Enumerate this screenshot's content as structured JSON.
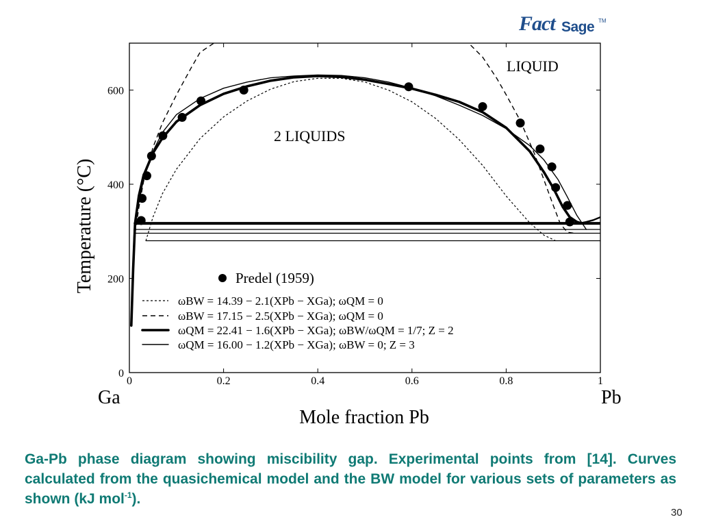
{
  "logo": {
    "mark": "Fact",
    "sage": "Sage",
    "tm": "TM"
  },
  "chart_data": {
    "type": "line",
    "title": "",
    "xlabel": "Mole fraction Pb",
    "ylabel": "Temperature (°C)",
    "xlim": [
      0,
      1
    ],
    "ylim": [
      0,
      700
    ],
    "xticks": [
      0,
      0.2,
      0.4,
      0.6,
      0.8,
      1
    ],
    "xtick_labels": [
      "0",
      "0.2",
      "0.4",
      "0.6",
      "0.8",
      "1"
    ],
    "yticks": [
      0,
      200,
      400,
      600
    ],
    "ytick_labels": [
      "0",
      "200",
      "400",
      "600"
    ],
    "x_end_labels": {
      "left": "Ga",
      "right": "Pb"
    },
    "grid": false,
    "legend_position": "bottom-left",
    "region_labels": [
      "LIQUID",
      "2 LIQUIDS"
    ],
    "experimental": {
      "name": "Predel (1959)",
      "points": [
        [
          0.025,
          323
        ],
        [
          0.027,
          370
        ],
        [
          0.037,
          418
        ],
        [
          0.047,
          460
        ],
        [
          0.071,
          503
        ],
        [
          0.112,
          542
        ],
        [
          0.152,
          577
        ],
        [
          0.243,
          600
        ],
        [
          0.593,
          607
        ],
        [
          0.75,
          565
        ],
        [
          0.83,
          530
        ],
        [
          0.872,
          475
        ],
        [
          0.897,
          437
        ],
        [
          0.905,
          393
        ],
        [
          0.93,
          355
        ],
        [
          0.935,
          320
        ]
      ]
    },
    "monotectic_temperatures": [
      {
        "series": "QM Z=2",
        "T": 317
      },
      {
        "series": "QM Z=3",
        "T": 304
      },
      {
        "series": "BW 17.15",
        "T": 296
      },
      {
        "series": "BW 14.39",
        "T": 280
      }
    ],
    "series": [
      {
        "name": "ωBW = 14.39 − 2.1(XPb − XGa); ωQM = 0",
        "style": "dotted-dash",
        "x": [
          0.035,
          0.05,
          0.07,
          0.1,
          0.15,
          0.2,
          0.25,
          0.3,
          0.35,
          0.4,
          0.45,
          0.5,
          0.55,
          0.6,
          0.65,
          0.7,
          0.75,
          0.8,
          0.85,
          0.88,
          0.905
        ],
        "y": [
          280,
          330,
          380,
          432,
          497,
          543,
          577,
          602,
          618,
          625,
          625,
          617,
          600,
          575,
          540,
          495,
          440,
          375,
          318,
          292,
          280
        ]
      },
      {
        "name": "ωBW = 17.15 − 2.5(XPb − XGa); ωQM = 0",
        "style": "dashed",
        "x": [
          0.012,
          0.02,
          0.03,
          0.05,
          0.07,
          0.1,
          0.13,
          0.15,
          0.18,
          0.72,
          0.75,
          0.78,
          0.8,
          0.83,
          0.86,
          0.88,
          0.9,
          0.915,
          0.93,
          0.945
        ],
        "y": [
          296,
          350,
          405,
          478,
          530,
          590,
          645,
          680,
          700,
          700,
          670,
          625,
          590,
          535,
          465,
          410,
          355,
          316,
          298,
          296
        ]
      },
      {
        "name": "ωQM = 22.41 − 1.6(XPb − XGa); ωBW/ωQM = 1/7; Z = 2",
        "style": "thick",
        "x": [
          0.004,
          0.008,
          0.012,
          0.02,
          0.03,
          0.05,
          0.07,
          0.1,
          0.15,
          0.2,
          0.25,
          0.3,
          0.35,
          0.4,
          0.45,
          0.5,
          0.55,
          0.6,
          0.65,
          0.7,
          0.75,
          0.8,
          0.85,
          0.88,
          0.9,
          0.92,
          0.935,
          0.95,
          0.96
        ],
        "y": [
          100,
          220,
          317,
          375,
          418,
          466,
          498,
          533,
          568,
          592,
          608,
          620,
          627,
          630,
          628,
          622,
          613,
          603,
          590,
          575,
          553,
          520,
          470,
          426,
          392,
          352,
          330,
          320,
          317
        ]
      },
      {
        "name": "ωQM = 16.00 − 1.2(XPb − XGa); ωBW = 0; Z = 3",
        "style": "thin",
        "x": [
          0.004,
          0.01,
          0.02,
          0.03,
          0.05,
          0.07,
          0.1,
          0.15,
          0.2,
          0.25,
          0.3,
          0.35,
          0.4,
          0.45,
          0.5,
          0.55,
          0.6,
          0.65,
          0.7,
          0.75,
          0.8,
          0.85,
          0.88,
          0.91,
          0.93,
          0.95,
          0.97
        ],
        "y": [
          100,
          304,
          360,
          410,
          470,
          510,
          548,
          582,
          604,
          617,
          626,
          630,
          632,
          631,
          626,
          617,
          604,
          588,
          568,
          546,
          518,
          482,
          452,
          410,
          373,
          334,
          304
        ]
      }
    ],
    "liquidus_above": {
      "x": [
        0.945,
        0.96,
        0.97,
        0.985,
        1.0
      ],
      "y": [
        316,
        318,
        320,
        324,
        330
      ]
    }
  },
  "caption": {
    "main": "Ga-Pb phase diagram showing miscibility gap. Experimental points from [14]. Curves calculated from the quasichemical model and the BW model for various sets of parameters as shown (kJ mol",
    "sup": "-1",
    "end": ")."
  },
  "slide_number": "30"
}
